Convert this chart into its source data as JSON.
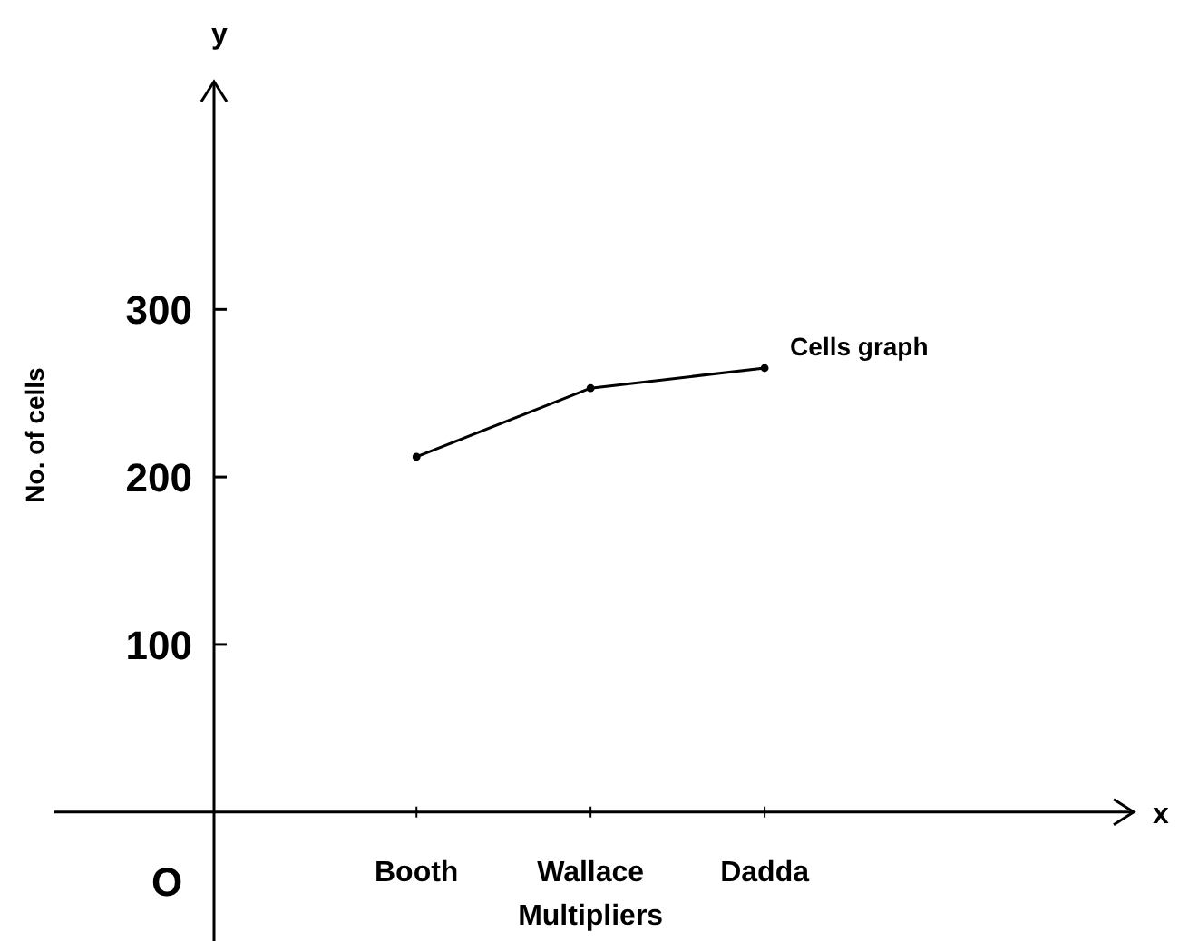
{
  "chart_data": {
    "type": "line",
    "xlabel": "Multipliers",
    "ylabel": "No. of cells",
    "categories": [
      "Booth",
      "Wallace",
      "Dadda"
    ],
    "series": [
      {
        "name": "Cells graph",
        "color": "#000000",
        "values": [
          212,
          253,
          265
        ]
      }
    ],
    "ylim": [
      -77,
      436
    ],
    "yticks": [
      100,
      200,
      300
    ],
    "grid": false,
    "marker": "circle",
    "line_style": "solid",
    "annotations": [
      "x",
      "y",
      "O"
    ]
  }
}
